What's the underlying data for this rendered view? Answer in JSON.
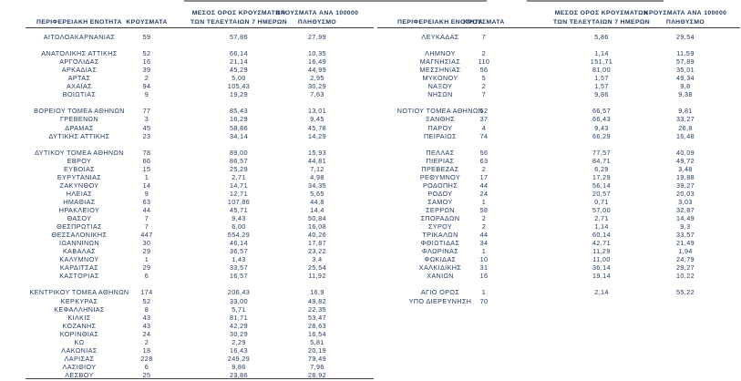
{
  "page": {
    "background": "#ffffff",
    "text_color": "#1f3a60",
    "rule_color": "#404040",
    "artifact_color": "#8c8c8c"
  },
  "header": {
    "col_region": "ΠΕΡΙΦΕΡΕΙΑΚΗ ΕΝΟΤΗΤΑ",
    "col_cases": "ΚΡΟΥΣΜΑΤΑ",
    "col_avg_line1": "ΜΕΣΟΣ ΟΡΟΣ ΚΡΟΥΣΜΑΤΩΝ",
    "col_avg_line2": "ΤΩΝ ΤΕΛΕΥΤΑΙΩΝ 7 ΗΜΕΡΩΝ",
    "col_per100k_line1": "ΚΡΟΥΣΜΑΤΑ ΑΝΑ 100000",
    "col_per100k_line2": "ΠΛΗΘΥΣΜΟ"
  },
  "tables": {
    "left": {
      "rows": [
        [
          "ΑΙΤΩΛΟΑΚΑΡΝΑΝΙΑΣ",
          "59",
          "57,86",
          "27,99"
        ],
        [
          "",
          "",
          "",
          ""
        ],
        [
          "ΑΝΑΤΟΛΙΚΗΣ ΑΤΤΙΚΗΣ",
          "52",
          "66,14",
          "10,35"
        ],
        [
          "ΑΡΓΟΛΙΔΑΣ",
          "16",
          "21,14",
          "16,49"
        ],
        [
          "ΑΡΚΑΔΙΑΣ",
          "39",
          "45,29",
          "44,99"
        ],
        [
          "ΑΡΤΑΣ",
          "2",
          "5,00",
          "2,95"
        ],
        [
          "ΑΧΑΪΑΣ",
          "94",
          "105,43",
          "30,29"
        ],
        [
          "ΒΟΙΩΤΙΑΣ",
          "9",
          "19,29",
          "7,63"
        ],
        [
          "",
          "",
          "",
          ""
        ],
        [
          "ΒΟΡΕΙΟΥ ΤΟΜΕΑ ΑΘΗΝΩΝ",
          "77",
          "85,43",
          "13,01"
        ],
        [
          "ΓΡΕΒΕΝΩΝ",
          "3",
          "16,29",
          "9,45"
        ],
        [
          "ΔΡΑΜΑΣ",
          "45",
          "58,86",
          "45,78"
        ],
        [
          "ΔΥΤΙΚΗΣ ΑΤΤΙΚΗΣ",
          "23",
          "34,14",
          "14,29"
        ],
        [
          "",
          "",
          "",
          ""
        ],
        [
          "ΔΥΤΙΚΟΥ ΤΟΜΕΑ ΑΘΗΝΩΝ",
          "78",
          "89,00",
          "15,93"
        ],
        [
          "ΕΒΡΟΥ",
          "66",
          "86,57",
          "44,81"
        ],
        [
          "ΕΥΒΟΙΑΣ",
          "15",
          "25,29",
          "7,12"
        ],
        [
          "ΕΥΡΥΤΑΝΙΑΣ",
          "1",
          "2,71",
          "4,98"
        ],
        [
          "ΖΑΚΥΝΘΟΥ",
          "14",
          "14,71",
          "34,35"
        ],
        [
          "ΗΛΕΙΑΣ",
          "9",
          "12,71",
          "5,65"
        ],
        [
          "ΗΜΑΘΙΑΣ",
          "63",
          "107,86",
          "44,8"
        ],
        [
          "ΗΡΑΚΛΕΙΟΥ",
          "44",
          "45,71",
          "14,4"
        ],
        [
          "ΘΑΣΟΥ",
          "7",
          "9,43",
          "50,84"
        ],
        [
          "ΘΕΣΠΡΩΤΙΑΣ",
          "7",
          "6,00",
          "16,08"
        ],
        [
          "ΘΕΣΣΑΛΟΝΙΚΗΣ",
          "447",
          "554,29",
          "40,26"
        ],
        [
          "ΙΩΑΝΝΙΝΩΝ",
          "30",
          "46,14",
          "17,87"
        ],
        [
          "ΚΑΒΑΛΑΣ",
          "29",
          "36,57",
          "23,22"
        ],
        [
          "ΚΑΛΥΜΝΟΥ",
          "1",
          "1,43",
          "3,4"
        ],
        [
          "ΚΑΡΔΙΤΣΑΣ",
          "29",
          "33,57",
          "25,54"
        ],
        [
          "ΚΑΣΤΟΡΙΑΣ",
          "6",
          "16,57",
          "11,92"
        ],
        [
          "",
          "",
          "",
          ""
        ],
        [
          "ΚΕΝΤΡΙΚΟΥ ΤΟΜΕΑ ΑΘΗΝΩΝ",
          "174",
          "206,43",
          "16,9"
        ],
        [
          "ΚΕΡΚΥΡΑΣ",
          "52",
          "33,00",
          "49,82"
        ],
        [
          "ΚΕΦΑΛΛΗΝΙΑΣ",
          "8",
          "5,71",
          "22,35"
        ],
        [
          "ΚΙΛΚΙΣ",
          "43",
          "81,71",
          "53,47"
        ],
        [
          "ΚΟΖΑΝΗΣ",
          "43",
          "42,29",
          "28,63"
        ],
        [
          "ΚΟΡΙΝΘΙΑΣ",
          "24",
          "30,29",
          "16,54"
        ],
        [
          "ΚΩ",
          "2",
          "2,29",
          "5,81"
        ],
        [
          "ΛΑΚΩΝΙΑΣ",
          "18",
          "16,43",
          "20,19"
        ],
        [
          "ΛΑΡΙΣΑΣ",
          "228",
          "249,29",
          "79,49"
        ],
        [
          "ΛΑΣΙΘΙΟΥ",
          "6",
          "9,86",
          "7,96"
        ],
        [
          "ΛΕΣΒΟΥ",
          "25",
          "23,86",
          "28,92"
        ]
      ]
    },
    "right": {
      "rows": [
        [
          "ΛΕΥΚΑΔΑΣ",
          "7",
          "5,86",
          "29,54"
        ],
        [
          "",
          "",
          "",
          ""
        ],
        [
          "ΛΗΜΝΟΥ",
          "2",
          "1,14",
          "11,59"
        ],
        [
          "ΜΑΓΝΗΣΙΑΣ",
          "110",
          "151,71",
          "57,89"
        ],
        [
          "ΜΕΣΣΗΝΙΑΣ",
          "56",
          "81,00",
          "35,01"
        ],
        [
          "ΜΥΚΟΝΟΥ",
          "5",
          "1,57",
          "49,34"
        ],
        [
          "ΝΑΞΟΥ",
          "2",
          "1,57",
          "9,8"
        ],
        [
          "ΝΗΣΩΝ",
          "7",
          "9,86",
          "9,38"
        ],
        [
          "",
          "",
          "",
          ""
        ],
        [
          "ΝΟΤΙΟΥ ΤΟΜΕΑ ΑΘΗΝΩΝ",
          "52",
          "66,57",
          "9,81"
        ],
        [
          "ΞΑΝΘΗΣ",
          "37",
          "66,43",
          "33,27"
        ],
        [
          "ΠΑΡΟΥ",
          "4",
          "9,43",
          "26,8"
        ],
        [
          "ΠΕΙΡΑΙΩΣ",
          "74",
          "66,29",
          "16,48"
        ],
        [
          "",
          "",
          "",
          ""
        ],
        [
          "ΠΕΛΛΑΣ",
          "56",
          "77,57",
          "40,09"
        ],
        [
          "ΠΙΕΡΙΑΣ",
          "63",
          "84,71",
          "49,72"
        ],
        [
          "ΠΡΕΒΕΖΑΣ",
          "2",
          "6,29",
          "3,48"
        ],
        [
          "ΡΕΘΥΜΝΟΥ",
          "17",
          "17,29",
          "19,88"
        ],
        [
          "ΡΟΔΟΠΗΣ",
          "44",
          "56,14",
          "39,27"
        ],
        [
          "ΡΟΔΟΥ",
          "24",
          "20,57",
          "20,03"
        ],
        [
          "ΣΑΜΟΥ",
          "1",
          "0,71",
          "3,03"
        ],
        [
          "ΣΕΡΡΩΝ",
          "58",
          "57,00",
          "32,87"
        ],
        [
          "ΣΠΟΡΑΔΩΝ",
          "2",
          "2,71",
          "14,49"
        ],
        [
          "ΣΥΡΟΥ",
          "2",
          "1,14",
          "9,3"
        ],
        [
          "ΤΡΙΚΑΛΩΝ",
          "44",
          "60,14",
          "33,57"
        ],
        [
          "ΦΘΙΩΤΙΔΑΣ",
          "34",
          "42,71",
          "21,49"
        ],
        [
          "ΦΛΩΡΙΝΑΣ",
          "1",
          "11,29",
          "1,94"
        ],
        [
          "ΦΩΚΙΔΑΣ",
          "10",
          "11,00",
          "24,79"
        ],
        [
          "ΧΑΛΚΙΔΙΚΗΣ",
          "31",
          "36,14",
          "29,27"
        ],
        [
          "ΧΑΝΙΩΝ",
          "16",
          "19,14",
          "10,22"
        ],
        [
          "",
          "",
          "",
          ""
        ],
        [
          "ΑΓΙΟ ΟΡΟΣ",
          "1",
          "2,14",
          "55,22"
        ],
        [
          "ΥΠΟ ΔΙΕΡΕΥΝΗΣΗ",
          "70",
          "",
          ""
        ],
        [
          "",
          "",
          "",
          ""
        ],
        [
          "",
          "",
          "",
          ""
        ],
        [
          "",
          "",
          "",
          ""
        ],
        [
          "",
          "",
          "",
          ""
        ],
        [
          "",
          "",
          "",
          ""
        ],
        [
          "",
          "",
          "",
          ""
        ],
        [
          "",
          "",
          "",
          ""
        ],
        [
          "",
          "",
          "",
          ""
        ],
        [
          "",
          "",
          "",
          ""
        ]
      ]
    }
  }
}
